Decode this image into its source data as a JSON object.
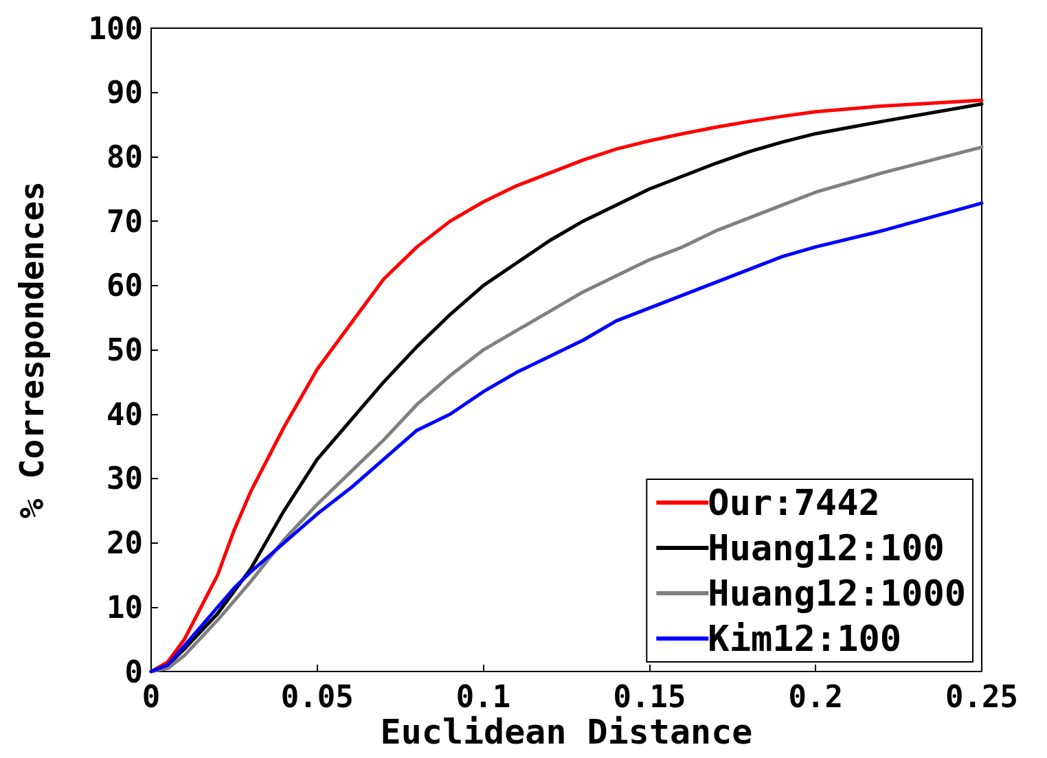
{
  "chart_data": {
    "type": "line",
    "xlabel": "Euclidean Distance",
    "ylabel": "% Correspondences",
    "x": [
      0,
      0.005,
      0.01,
      0.02,
      0.025,
      0.03,
      0.04,
      0.05,
      0.06,
      0.07,
      0.08,
      0.09,
      0.1,
      0.11,
      0.12,
      0.13,
      0.14,
      0.15,
      0.16,
      0.17,
      0.18,
      0.19,
      0.2,
      0.22,
      0.25
    ],
    "series": [
      {
        "name": "Our:7442",
        "color": "#ff0000",
        "values": [
          0,
          1.5,
          5,
          15,
          22,
          28,
          38,
          47,
          54,
          61,
          66,
          70,
          73,
          75.5,
          77.5,
          79.5,
          81.2,
          82.5,
          83.6,
          84.6,
          85.5,
          86.3,
          87,
          87.9,
          88.8
        ]
      },
      {
        "name": "Huang12:100",
        "color": "#000000",
        "values": [
          0,
          1,
          3.5,
          9,
          12.5,
          16,
          25,
          33,
          39,
          45,
          50.5,
          55.5,
          60,
          63.5,
          67,
          70,
          72.5,
          75,
          77,
          79,
          80.8,
          82.3,
          83.6,
          85.5,
          88.2
        ]
      },
      {
        "name": "Huang12:1000",
        "color": "#808080",
        "values": [
          0,
          0.5,
          2.5,
          8,
          11,
          14,
          20.5,
          26,
          31,
          36,
          41.5,
          46,
          50,
          53,
          56,
          59,
          61.5,
          64,
          66,
          68.5,
          70.5,
          72.5,
          74.5,
          77.5,
          81.5
        ]
      },
      {
        "name": "Kim12:100",
        "color": "#0000ff",
        "values": [
          0,
          1,
          4,
          10,
          13,
          15.5,
          20,
          24.5,
          28.5,
          33,
          37.5,
          40,
          43.5,
          46.5,
          49,
          51.5,
          54.5,
          56.5,
          58.5,
          60.5,
          62.5,
          64.5,
          66,
          68.5,
          72.8
        ]
      }
    ],
    "xlim": [
      0,
      0.25
    ],
    "xticks": [
      0,
      0.05,
      0.1,
      0.15,
      0.2,
      0.25
    ],
    "ylim": [
      0,
      100
    ],
    "yticks": [
      0,
      10,
      20,
      30,
      40,
      50,
      60,
      70,
      80,
      90,
      100
    ],
    "grid": false,
    "legend": "bottom right",
    "marker": "none",
    "line_style": "solid"
  }
}
